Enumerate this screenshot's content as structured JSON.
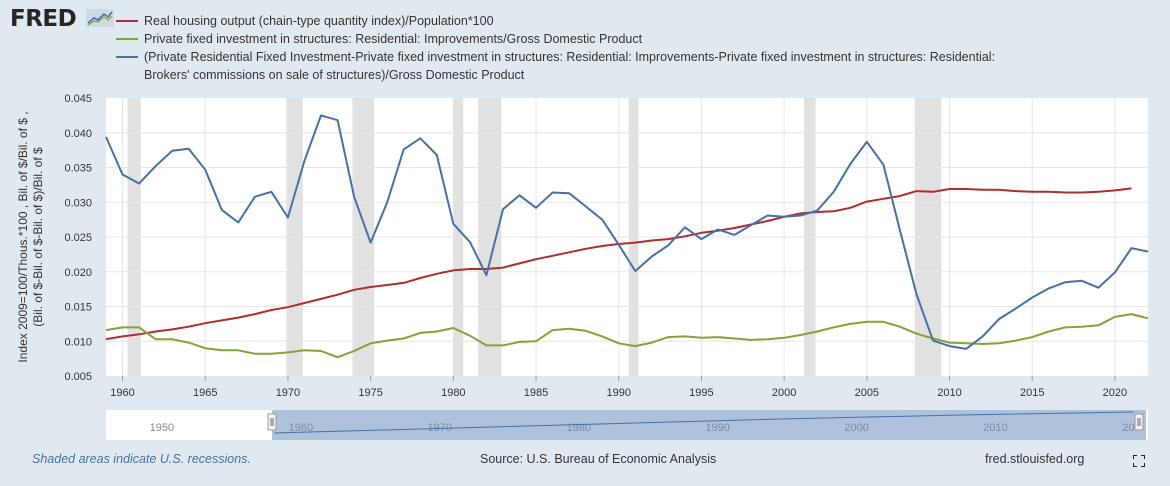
{
  "logo": {
    "text": "FRED",
    "icon": "chart-line-icon"
  },
  "legend": [
    {
      "label": "Real housing output (chain-type quantity index)/Population*100",
      "color": "#b22d2d"
    },
    {
      "label": "Private fixed investment in structures: Residential: Improvements/Gross Domestic Product",
      "color": "#83a438"
    },
    {
      "label": "(Private Residential Fixed Investment-Private fixed investment in structures: Residential: Improvements-Private fixed investment in structures: Residential: Brokers' commissions on sale of structures)/Gross Domestic Product",
      "color": "#4572a7"
    }
  ],
  "y_axis_title_line1": "Index 2009=100/Thous.*100 , Bil. of $/Bil. of $ ,",
  "y_axis_title_line2": "(Bil. of $-Bil. of $-Bil. of $)/Bil. of $",
  "footer": {
    "recession_note": "Shaded areas indicate U.S. recessions.",
    "source": "Source: U.S. Bureau of Economic Analysis",
    "site": "fred.stlouisfed.org"
  },
  "navigator": {
    "labels": [
      "1950",
      "1960",
      "1970",
      "1980",
      "1990",
      "2000",
      "2010",
      "20"
    ],
    "range": [
      1959,
      2022
    ]
  },
  "chart_data": {
    "type": "line",
    "xlim": [
      1959,
      2022
    ],
    "ylim": [
      0.005,
      0.045
    ],
    "yticks": [
      "0.045",
      "0.040",
      "0.035",
      "0.030",
      "0.025",
      "0.020",
      "0.015",
      "0.010",
      "0.005"
    ],
    "xticks": [
      "1960",
      "1965",
      "1970",
      "1975",
      "1980",
      "1985",
      "1990",
      "1995",
      "2000",
      "2005",
      "2010",
      "2015",
      "2020"
    ],
    "grid": true,
    "legend_position": "top",
    "recessions": [
      [
        1960.3,
        1961.1
      ],
      [
        1969.9,
        1970.9
      ],
      [
        1973.9,
        1975.2
      ],
      [
        1980.0,
        1980.6
      ],
      [
        1981.5,
        1982.9
      ],
      [
        1990.6,
        1991.2
      ],
      [
        2001.2,
        2001.9
      ],
      [
        2007.9,
        2009.5
      ]
    ],
    "x": [
      1959,
      1960,
      1961,
      1962,
      1963,
      1964,
      1965,
      1966,
      1967,
      1968,
      1969,
      1970,
      1971,
      1972,
      1973,
      1974,
      1975,
      1976,
      1977,
      1978,
      1979,
      1980,
      1981,
      1982,
      1983,
      1984,
      1985,
      1986,
      1987,
      1988,
      1989,
      1990,
      1991,
      1992,
      1993,
      1994,
      1995,
      1996,
      1997,
      1998,
      1999,
      2000,
      2001,
      2002,
      2003,
      2004,
      2005,
      2006,
      2007,
      2008,
      2009,
      2010,
      2011,
      2012,
      2013,
      2014,
      2015,
      2016,
      2017,
      2018,
      2019,
      2020,
      2021,
      2022
    ],
    "series": [
      {
        "name": "Real housing output (chain-type quantity index)/Population*100",
        "color": "#b22d2d",
        "values": [
          0.0103,
          0.0107,
          0.011,
          0.0114,
          0.0117,
          0.0121,
          0.0126,
          0.013,
          0.0134,
          0.0139,
          0.0145,
          0.0149,
          0.0155,
          0.0161,
          0.0167,
          0.0174,
          0.0178,
          0.0181,
          0.0184,
          0.0191,
          0.0197,
          0.0202,
          0.0204,
          0.0204,
          0.0206,
          0.0212,
          0.0218,
          0.0223,
          0.0228,
          0.0233,
          0.0237,
          0.024,
          0.0242,
          0.0245,
          0.0247,
          0.0251,
          0.0256,
          0.0259,
          0.0263,
          0.0268,
          0.0273,
          0.0279,
          0.0284,
          0.0286,
          0.0287,
          0.0292,
          0.0301,
          0.0305,
          0.0309,
          0.0316,
          0.0315,
          0.0319,
          0.0319,
          0.0318,
          0.0318,
          0.0316,
          0.0315,
          0.0315,
          0.0314,
          0.0314,
          0.0315,
          0.0317,
          0.032,
          null
        ]
      },
      {
        "name": "Private fixed investment in structures: Residential: Improvements/Gross Domestic Product",
        "color": "#83a438",
        "values": [
          0.0116,
          0.012,
          0.012,
          0.0103,
          0.0103,
          0.0098,
          0.009,
          0.0087,
          0.0087,
          0.0082,
          0.0082,
          0.0084,
          0.0087,
          0.0086,
          0.0077,
          0.0086,
          0.0097,
          0.0101,
          0.0104,
          0.0112,
          0.0114,
          0.0119,
          0.0108,
          0.0094,
          0.0094,
          0.0099,
          0.01,
          0.0116,
          0.0118,
          0.0115,
          0.0107,
          0.0097,
          0.0093,
          0.0098,
          0.0106,
          0.0107,
          0.0105,
          0.0106,
          0.0104,
          0.0102,
          0.0103,
          0.0105,
          0.0109,
          0.0114,
          0.012,
          0.0125,
          0.0128,
          0.0128,
          0.0121,
          0.0111,
          0.0104,
          0.0098,
          0.0097,
          0.0096,
          0.0097,
          0.0101,
          0.0106,
          0.0114,
          0.012,
          0.0121,
          0.0123,
          0.0135,
          0.0139,
          0.0133
        ]
      },
      {
        "name": "(Private Residential Fixed Investment-Private fixed investment in structures: Residential: Improvements-Private fixed investment in structures: Residential: Brokers' commissions on sale of structures)/Gross Domestic Product",
        "color": "#4572a7",
        "values": [
          0.0394,
          0.034,
          0.0327,
          0.0352,
          0.0374,
          0.0377,
          0.0347,
          0.0289,
          0.0271,
          0.0308,
          0.0315,
          0.0278,
          0.036,
          0.0425,
          0.0418,
          0.0308,
          0.0242,
          0.03,
          0.0376,
          0.0392,
          0.0368,
          0.0269,
          0.0243,
          0.0195,
          0.029,
          0.031,
          0.0292,
          0.0314,
          0.0313,
          0.0294,
          0.0275,
          0.0239,
          0.0201,
          0.0222,
          0.0238,
          0.0264,
          0.0247,
          0.0261,
          0.0253,
          0.0267,
          0.0281,
          0.0279,
          0.0281,
          0.0288,
          0.0315,
          0.0355,
          0.0387,
          0.0354,
          0.026,
          0.0168,
          0.0101,
          0.0093,
          0.0089,
          0.0107,
          0.0132,
          0.0147,
          0.0163,
          0.0176,
          0.0185,
          0.0187,
          0.0177,
          0.0199,
          0.0234,
          0.0229
        ]
      }
    ]
  }
}
